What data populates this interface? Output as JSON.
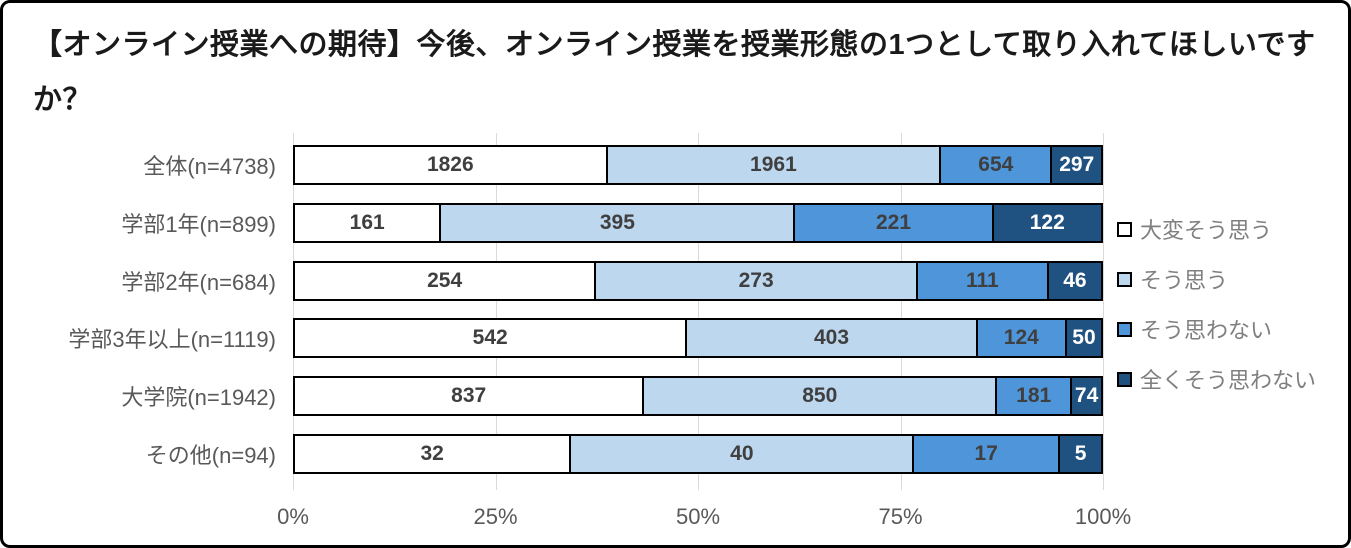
{
  "title": "【オンライン授業への期待】今後、オンライン授業を授業形態の1つとして取り入れてほしいですか？",
  "chart_data": {
    "type": "bar",
    "orientation": "horizontal",
    "stacked": true,
    "normalized": "100%-stacked",
    "title": "【オンライン授業への期待】今後、オンライン授業を授業形態の1つとして取り入れてほしいですか？",
    "categories": [
      "全体(n=4738)",
      "学部1年(n=899)",
      "学部2年(n=684)",
      "学部3年以上(n=1119)",
      "大学院(n=1942)",
      "その他(n=94)"
    ],
    "series": [
      {
        "name": "大変そう思う",
        "color": "#ffffff",
        "label_color": "#3f3f3f",
        "values": [
          1826,
          161,
          254,
          542,
          837,
          32
        ]
      },
      {
        "name": "そう思う",
        "color": "#bdd7ee",
        "label_color": "#3f3f3f",
        "values": [
          1961,
          395,
          273,
          403,
          850,
          40
        ]
      },
      {
        "name": "そう思わない",
        "color": "#4e95d9",
        "label_color": "#3f3f3f",
        "values": [
          654,
          221,
          111,
          124,
          181,
          17
        ]
      },
      {
        "name": "全くそう思わない",
        "color": "#1f5181",
        "label_color": "#ffffff",
        "values": [
          297,
          122,
          46,
          50,
          74,
          5
        ]
      }
    ],
    "x_axis": {
      "ticks": [
        "0%",
        "25%",
        "50%",
        "75%",
        "100%"
      ],
      "range": [
        0,
        100
      ],
      "gridlines": true
    },
    "legend": {
      "position": "right",
      "entries": [
        "大変そう思う",
        "そう思う",
        "そう思わない",
        "全くそう思わない"
      ]
    },
    "style": {
      "gridline_color": "#d9d9d9",
      "axis_label_color": "#595959",
      "category_label_color": "#595959",
      "legend_text_color": "#7f7f7f",
      "bar_border_color": "#000000"
    }
  }
}
